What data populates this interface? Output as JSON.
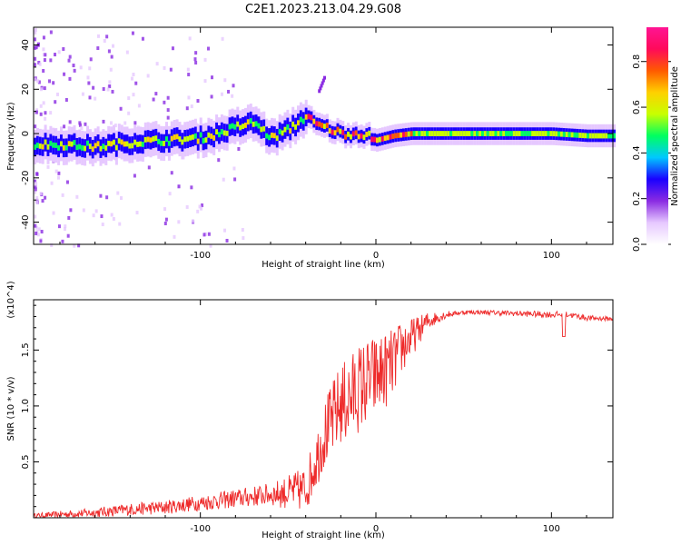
{
  "title": "C2E1.2023.213.04.29.G08",
  "chart_data": [
    {
      "type": "heatmap",
      "name": "spectrogram",
      "xlabel": "Height of straight line (km)",
      "ylabel": "Frequency (Hz)",
      "xlim": [
        -195,
        135
      ],
      "ylim": [
        -50,
        48
      ],
      "xticks": [
        -100,
        0,
        100
      ],
      "xtick_labels": [
        "-100",
        "0",
        "100"
      ],
      "yticks": [
        -40,
        -20,
        0,
        20,
        40
      ],
      "ytick_labels": [
        "-40",
        "-20",
        "0",
        "20",
        "40"
      ],
      "ridge": {
        "x": [
          -195,
          -180,
          -160,
          -140,
          -120,
          -100,
          -90,
          -80,
          -70,
          -60,
          -50,
          -45,
          -40,
          -35,
          -30,
          -20,
          -10,
          -5,
          0,
          10,
          20,
          40,
          60,
          80,
          100,
          120,
          135
        ],
        "freq": [
          -5,
          -5,
          -6,
          -4,
          -3,
          -2,
          0,
          3,
          5,
          -2,
          2,
          5,
          8,
          4,
          3,
          0,
          0,
          -1,
          -3,
          -1,
          0,
          0,
          0,
          0,
          0,
          -1,
          -1
        ]
      },
      "colorbar": {
        "label": "Normalized spectral amplitude",
        "range": [
          0,
          0.95
        ],
        "ticks": [
          0.0,
          0.2,
          0.4,
          0.6,
          0.8
        ],
        "tick_labels": [
          "0.0",
          "0.2",
          "0.4",
          "0.6",
          "0.8"
        ],
        "colormap": [
          "#ffffff",
          "#e6c8ff",
          "#8a2be2",
          "#1a00ff",
          "#00c8ff",
          "#00ff60",
          "#c8ff00",
          "#ffd000",
          "#ff5a00",
          "#ff0a5a",
          "#ff1493"
        ]
      }
    },
    {
      "type": "line",
      "name": "snr",
      "xlabel": "Height of straight line (km)",
      "ylabel": "SNR (10 * v/v)",
      "yscale_label": "(x10^4)",
      "xlim": [
        -195,
        135
      ],
      "ylim": [
        0,
        1.95
      ],
      "xticks": [
        -100,
        0,
        100
      ],
      "xtick_labels": [
        "-100",
        "0",
        "100"
      ],
      "yticks": [
        0.5,
        1.0,
        1.5
      ],
      "ytick_labels": [
        "0.5",
        "1.0",
        "1.5"
      ],
      "color": "#ee2b2b",
      "envelope": {
        "x": [
          -195,
          -160,
          -140,
          -120,
          -100,
          -80,
          -60,
          -50,
          -40,
          -35,
          -30,
          -25,
          -20,
          -15,
          -10,
          -5,
          0,
          5,
          10,
          15,
          20,
          25,
          30,
          40,
          50,
          60,
          80,
          100,
          110,
          120,
          135
        ],
        "y": [
          0.02,
          0.05,
          0.08,
          0.1,
          0.14,
          0.18,
          0.22,
          0.24,
          0.28,
          0.5,
          0.75,
          0.9,
          1.05,
          1.1,
          1.2,
          1.25,
          1.3,
          1.35,
          1.42,
          1.55,
          1.62,
          1.7,
          1.77,
          1.82,
          1.84,
          1.84,
          1.83,
          1.82,
          1.82,
          1.79,
          1.78
        ]
      },
      "noise": {
        "x": [
          -195,
          -150,
          -100,
          -60,
          -45,
          -35,
          -25,
          -15,
          -5,
          5,
          15,
          25,
          35,
          45,
          60,
          100,
          135
        ],
        "amp": [
          0.02,
          0.05,
          0.07,
          0.1,
          0.18,
          0.25,
          0.35,
          0.4,
          0.4,
          0.35,
          0.25,
          0.12,
          0.05,
          0.02,
          0.02,
          0.03,
          0.02
        ]
      }
    }
  ]
}
